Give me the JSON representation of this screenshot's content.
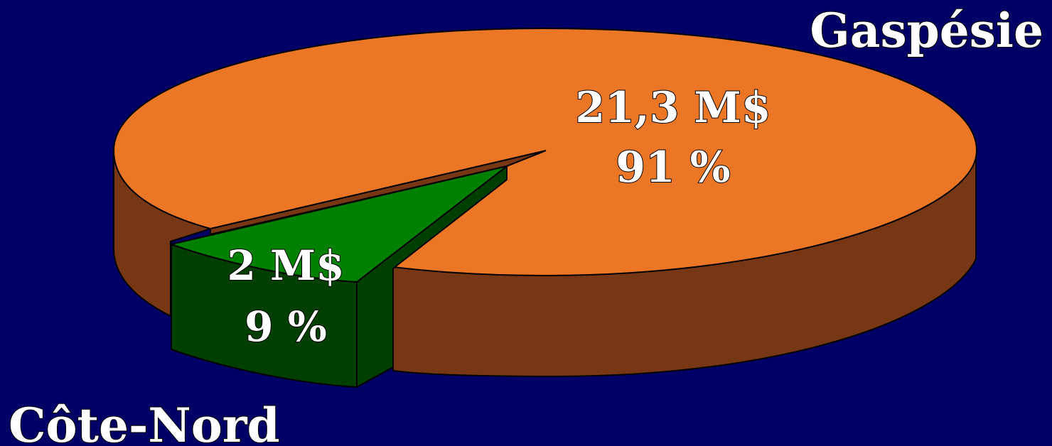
{
  "chart_data": {
    "type": "pie",
    "style": "3d-exploded",
    "slices": [
      {
        "name": "Gaspésie",
        "value": 21.3,
        "value_label": "21,3 M$",
        "percent": 91,
        "percent_label": "91 %",
        "color": "#EB7625",
        "side_color": "#773714"
      },
      {
        "name": "Côte-Nord",
        "value": 2,
        "value_label": "2 M$",
        "percent": 9,
        "percent_label": "9 %",
        "color": "#008000",
        "side_color": "#003F00",
        "exploded": true
      }
    ],
    "background": "#000066"
  }
}
